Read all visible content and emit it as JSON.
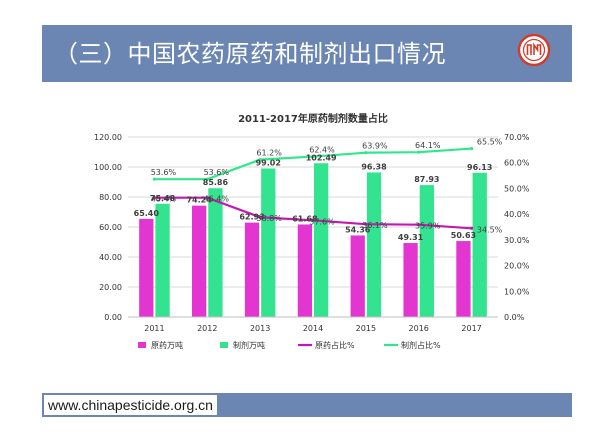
{
  "slide": {
    "title": "（三）中国农药原药和制剂出口情况",
    "logo": {
      "icon": "association-seal-icon",
      "color": "#d33a2a"
    },
    "footer_url": "www.chinapesticide.org.cn",
    "band_color": "#6b86b3"
  },
  "chart_data": {
    "type": "bar",
    "title": "2011-2017年原药制剂数量占比",
    "categories": [
      "2011",
      "2012",
      "2013",
      "2014",
      "2015",
      "2016",
      "2017"
    ],
    "y_left": {
      "ylim": [
        0,
        120
      ],
      "ticks": [
        "0.00",
        "20.00",
        "40.00",
        "60.00",
        "80.00",
        "100.00",
        "120.00"
      ]
    },
    "y_right": {
      "ylim": [
        0,
        70
      ],
      "ticks": [
        "0.0%",
        "10.0%",
        "20.0%",
        "30.0%",
        "40.0%",
        "50.0%",
        "60.0%",
        "70.0%"
      ]
    },
    "grid": true,
    "legend_position": "bottom",
    "series": [
      {
        "name": "原药万吨",
        "kind": "bar",
        "axis": "left",
        "color": "#e335d0",
        "values": [
          65.4,
          74.24,
          62.93,
          61.68,
          54.36,
          49.31,
          50.63
        ],
        "labels": [
          "65.40",
          "74.24",
          "62.93",
          "61.68",
          "54.36",
          "49.31",
          "50.63"
        ]
      },
      {
        "name": "制剂万吨",
        "kind": "bar",
        "axis": "left",
        "color": "#33e38f",
        "values": [
          75.48,
          85.86,
          99.02,
          102.49,
          96.38,
          87.93,
          96.13
        ],
        "labels": [
          "75.48",
          "85.86",
          "99.02",
          "102.49",
          "96.38",
          "87.93",
          "96.13"
        ]
      },
      {
        "name": "原药占比%",
        "kind": "line",
        "axis": "right",
        "color": "#c21ab0",
        "values": [
          46.4,
          46.4,
          38.8,
          37.6,
          36.1,
          35.9,
          34.5
        ],
        "labels": [
          "46.4%",
          "46.4%",
          "38.8%",
          "37.6%",
          "36.1%",
          "35.9%",
          "34.5%"
        ]
      },
      {
        "name": "制剂占比%",
        "kind": "line",
        "axis": "right",
        "color": "#2ee88a",
        "values": [
          53.6,
          53.6,
          61.2,
          62.4,
          63.9,
          64.1,
          65.5
        ],
        "labels": [
          "53.6%",
          "53.6%",
          "61.2%",
          "62.4%",
          "63.9%",
          "64.1%",
          "65.5%"
        ]
      }
    ]
  }
}
